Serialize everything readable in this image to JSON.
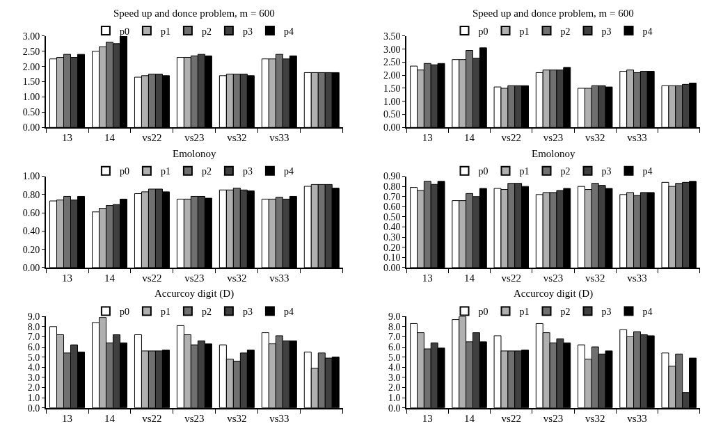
{
  "chart_data": [
    {
      "type": "bar",
      "title": "Speed up and donce problem, m = 600",
      "legend": "top",
      "categories": [
        "13",
        "14",
        "vs22",
        "vs23",
        "vs32",
        "vs33",
        null
      ],
      "ylim": [
        0,
        3
      ],
      "yticks": [
        {
          "value": 0,
          "label": "0.00"
        },
        {
          "value": 0.5,
          "label": "0.50"
        },
        {
          "value": 1,
          "label": "1.00"
        },
        {
          "value": 1.5,
          "label": "1.50"
        },
        {
          "value": 2,
          "label": "2.00"
        },
        {
          "value": 2.5,
          "label": "2.50"
        },
        {
          "value": 3,
          "label": "3.00"
        }
      ],
      "series": [
        {
          "name": "p0",
          "color": "#ffffff",
          "values": [
            2.25,
            2.5,
            1.65,
            2.3,
            1.7,
            2.25,
            1.8
          ]
        },
        {
          "name": "p1",
          "color": "#b0b0b0",
          "values": [
            2.3,
            2.65,
            1.7,
            2.3,
            1.75,
            2.25,
            1.8
          ]
        },
        {
          "name": "p2",
          "color": "#707070",
          "values": [
            2.4,
            2.8,
            1.75,
            2.35,
            1.75,
            2.4,
            1.8
          ]
        },
        {
          "name": "p3",
          "color": "#404040",
          "values": [
            2.3,
            2.75,
            1.75,
            2.4,
            1.75,
            2.25,
            1.8
          ]
        },
        {
          "name": "p4",
          "color": "#000000",
          "values": [
            2.4,
            3.0,
            1.7,
            2.35,
            1.7,
            2.35,
            1.8
          ]
        }
      ]
    },
    {
      "type": "bar",
      "title": "Speed up and donce problem, m = 600",
      "legend": "top",
      "categories": [
        "13",
        "14",
        "vs22",
        "vs23",
        "vs32",
        "vs33",
        null
      ],
      "ylim": [
        0,
        3.5
      ],
      "yticks": [
        {
          "value": 0,
          "label": "0.00"
        },
        {
          "value": 0.5,
          "label": "0.50"
        },
        {
          "value": 1,
          "label": "1.00"
        },
        {
          "value": 1.5,
          "label": "1.50"
        },
        {
          "value": 2,
          "label": "2.00"
        },
        {
          "value": 2.5,
          "label": "2.50"
        },
        {
          "value": 3,
          "label": "3.00"
        },
        {
          "value": 3.5,
          "label": "3.50"
        }
      ],
      "series": [
        {
          "name": "p0",
          "color": "#ffffff",
          "values": [
            2.35,
            2.6,
            1.55,
            2.1,
            1.5,
            2.15,
            1.6
          ]
        },
        {
          "name": "p1",
          "color": "#b0b0b0",
          "values": [
            2.2,
            2.6,
            1.5,
            2.2,
            1.5,
            2.2,
            1.6
          ]
        },
        {
          "name": "p2",
          "color": "#707070",
          "values": [
            2.45,
            2.95,
            1.6,
            2.2,
            1.6,
            2.1,
            1.6
          ]
        },
        {
          "name": "p3",
          "color": "#404040",
          "values": [
            2.4,
            2.65,
            1.6,
            2.2,
            1.6,
            2.15,
            1.65
          ]
        },
        {
          "name": "p4",
          "color": "#000000",
          "values": [
            2.45,
            3.05,
            1.6,
            2.3,
            1.55,
            2.15,
            1.7
          ]
        }
      ]
    },
    {
      "type": "bar",
      "title": "Emolonoy",
      "legend": "top",
      "categories": [
        "13",
        "14",
        "vs22",
        "vs23",
        "vs32",
        "vs33",
        null
      ],
      "ylim": [
        0,
        1
      ],
      "yticks": [
        {
          "value": 0,
          "label": "0.00"
        },
        {
          "value": 0.2,
          "label": "0.20"
        },
        {
          "value": 0.4,
          "label": "0.40"
        },
        {
          "value": 0.6,
          "label": "0.60"
        },
        {
          "value": 0.8,
          "label": "0.80"
        },
        {
          "value": 1,
          "label": "1.00"
        }
      ],
      "series": [
        {
          "name": "p0",
          "color": "#ffffff",
          "values": [
            0.73,
            0.61,
            0.81,
            0.75,
            0.85,
            0.75,
            0.89
          ]
        },
        {
          "name": "p1",
          "color": "#b0b0b0",
          "values": [
            0.74,
            0.65,
            0.83,
            0.75,
            0.85,
            0.75,
            0.91
          ]
        },
        {
          "name": "p2",
          "color": "#707070",
          "values": [
            0.78,
            0.68,
            0.86,
            0.78,
            0.87,
            0.77,
            0.91
          ]
        },
        {
          "name": "p3",
          "color": "#404040",
          "values": [
            0.74,
            0.69,
            0.86,
            0.78,
            0.85,
            0.75,
            0.91
          ]
        },
        {
          "name": "p4",
          "color": "#000000",
          "values": [
            0.78,
            0.75,
            0.83,
            0.76,
            0.84,
            0.78,
            0.87
          ]
        }
      ]
    },
    {
      "type": "bar",
      "title": "Emolonoy",
      "legend": "top",
      "categories": [
        "13",
        "14",
        "vs22",
        "vs23",
        "vs32",
        "vs33",
        null
      ],
      "ylim": [
        0,
        0.9
      ],
      "yticks": [
        {
          "value": 0,
          "label": "0.00"
        },
        {
          "value": 0.1,
          "label": "0.10"
        },
        {
          "value": 0.2,
          "label": "0.20"
        },
        {
          "value": 0.3,
          "label": "0.30"
        },
        {
          "value": 0.4,
          "label": "0.40"
        },
        {
          "value": 0.5,
          "label": "0.50"
        },
        {
          "value": 0.6,
          "label": "0.60"
        },
        {
          "value": 0.7,
          "label": "0.70"
        },
        {
          "value": 0.8,
          "label": "0.80"
        },
        {
          "value": 0.9,
          "label": "0.90"
        }
      ],
      "series": [
        {
          "name": "p0",
          "color": "#ffffff",
          "values": [
            0.79,
            0.66,
            0.78,
            0.72,
            0.8,
            0.72,
            0.84
          ]
        },
        {
          "name": "p1",
          "color": "#b0b0b0",
          "values": [
            0.76,
            0.66,
            0.77,
            0.74,
            0.77,
            0.74,
            0.8
          ]
        },
        {
          "name": "p2",
          "color": "#707070",
          "values": [
            0.85,
            0.73,
            0.83,
            0.74,
            0.83,
            0.71,
            0.83
          ]
        },
        {
          "name": "p3",
          "color": "#404040",
          "values": [
            0.82,
            0.7,
            0.83,
            0.76,
            0.81,
            0.74,
            0.84
          ]
        },
        {
          "name": "p4",
          "color": "#000000",
          "values": [
            0.85,
            0.78,
            0.8,
            0.78,
            0.78,
            0.74,
            0.85
          ]
        }
      ]
    },
    {
      "type": "bar",
      "title": "Accurcoy digit (D)",
      "legend": "top",
      "categories": [
        "13",
        "14",
        "vs22",
        "vs23",
        "vs32",
        "vs33",
        null
      ],
      "ylim": [
        0,
        9
      ],
      "yticks": [
        {
          "value": 0,
          "label": "0.0"
        },
        {
          "value": 1,
          "label": "1.0"
        },
        {
          "value": 2,
          "label": "2.0"
        },
        {
          "value": 3,
          "label": "3.0"
        },
        {
          "value": 4,
          "label": "4.0"
        },
        {
          "value": 5,
          "label": "5.0"
        },
        {
          "value": 6,
          "label": "6.0"
        },
        {
          "value": 7,
          "label": "7.0"
        },
        {
          "value": 8,
          "label": "8.0"
        },
        {
          "value": 9,
          "label": "9.0"
        }
      ],
      "series": [
        {
          "name": "p0",
          "color": "#ffffff",
          "values": [
            8.0,
            8.4,
            7.2,
            8.1,
            6.2,
            7.4,
            5.5
          ]
        },
        {
          "name": "p1",
          "color": "#b0b0b0",
          "values": [
            7.2,
            8.9,
            5.6,
            7.2,
            4.8,
            6.3,
            3.9
          ]
        },
        {
          "name": "p2",
          "color": "#707070",
          "values": [
            5.4,
            6.4,
            5.6,
            6.2,
            4.6,
            7.1,
            5.4
          ]
        },
        {
          "name": "p3",
          "color": "#404040",
          "values": [
            6.2,
            7.2,
            5.6,
            6.6,
            5.4,
            6.6,
            4.9
          ]
        },
        {
          "name": "p4",
          "color": "#000000",
          "values": [
            5.5,
            6.4,
            5.7,
            6.3,
            5.7,
            6.6,
            5.0
          ]
        }
      ]
    },
    {
      "type": "bar",
      "title": "Accurcoy digit (D)",
      "legend": "top",
      "categories": [
        "13",
        "14",
        "vs22",
        "vs23",
        "vs32",
        "vs33",
        null
      ],
      "ylim": [
        0,
        9
      ],
      "yticks": [
        {
          "value": 0,
          "label": "0.0"
        },
        {
          "value": 1,
          "label": "1.0"
        },
        {
          "value": 2,
          "label": "2.0"
        },
        {
          "value": 3,
          "label": "3.0"
        },
        {
          "value": 4,
          "label": "4.0"
        },
        {
          "value": 5,
          "label": "5.0"
        },
        {
          "value": 6,
          "label": "6.0"
        },
        {
          "value": 7,
          "label": "7.0"
        },
        {
          "value": 8,
          "label": "8.0"
        },
        {
          "value": 9,
          "label": "9.0"
        }
      ],
      "series": [
        {
          "name": "p0",
          "color": "#ffffff",
          "values": [
            8.3,
            8.7,
            7.1,
            8.3,
            6.2,
            7.7,
            5.4
          ]
        },
        {
          "name": "p1",
          "color": "#b0b0b0",
          "values": [
            7.4,
            9.0,
            5.6,
            7.4,
            4.8,
            7.0,
            4.1
          ]
        },
        {
          "name": "p2",
          "color": "#707070",
          "values": [
            5.8,
            6.5,
            5.6,
            6.4,
            6.0,
            7.5,
            5.3
          ]
        },
        {
          "name": "p3",
          "color": "#404040",
          "values": [
            6.4,
            7.4,
            5.6,
            6.8,
            5.3,
            7.2,
            1.5
          ]
        },
        {
          "name": "p4",
          "color": "#000000",
          "values": [
            5.9,
            6.5,
            5.7,
            6.4,
            5.6,
            7.1,
            4.9
          ]
        }
      ]
    }
  ]
}
